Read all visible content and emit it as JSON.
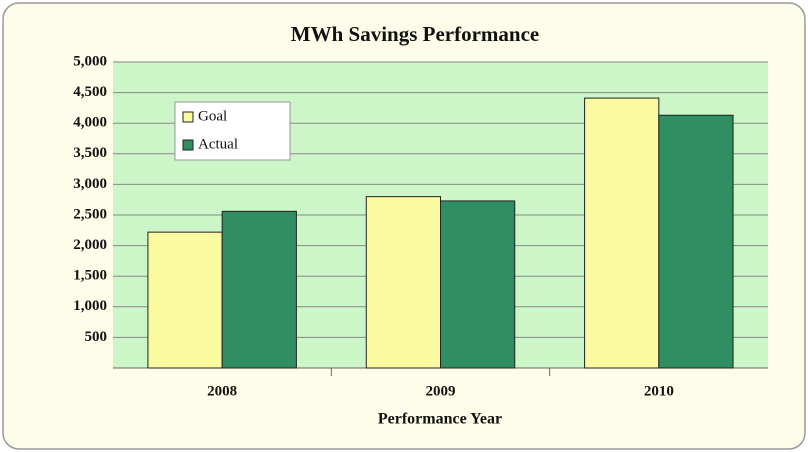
{
  "chart_data": {
    "type": "bar",
    "title": "MWh Savings Performance",
    "x_label": "Performance Year",
    "categories": [
      "2008",
      "2009",
      "2010"
    ],
    "series": [
      {
        "name": "Goal",
        "color": "#fafaa0",
        "values": [
          2220,
          2800,
          4410
        ]
      },
      {
        "name": "Actual",
        "color": "#2f8f62",
        "values": [
          2560,
          2730,
          4130
        ]
      }
    ],
    "ylim": [
      0,
      5000
    ],
    "yticks": [
      500,
      {
        "value": 1000,
        "label": "1,000"
      },
      {
        "value": 1500,
        "label": "1,500"
      },
      {
        "value": 2000,
        "label": "2,000"
      },
      {
        "value": 2500,
        "label": "2,500"
      },
      {
        "value": 3000,
        "label": "3,000"
      },
      {
        "value": 3500,
        "label": "3,500"
      },
      {
        "value": 4000,
        "label": "4,000"
      },
      {
        "value": 4500,
        "label": "4,500"
      },
      {
        "value": 5000,
        "label": "5,000"
      }
    ],
    "grid": true,
    "legend": "upper left"
  }
}
